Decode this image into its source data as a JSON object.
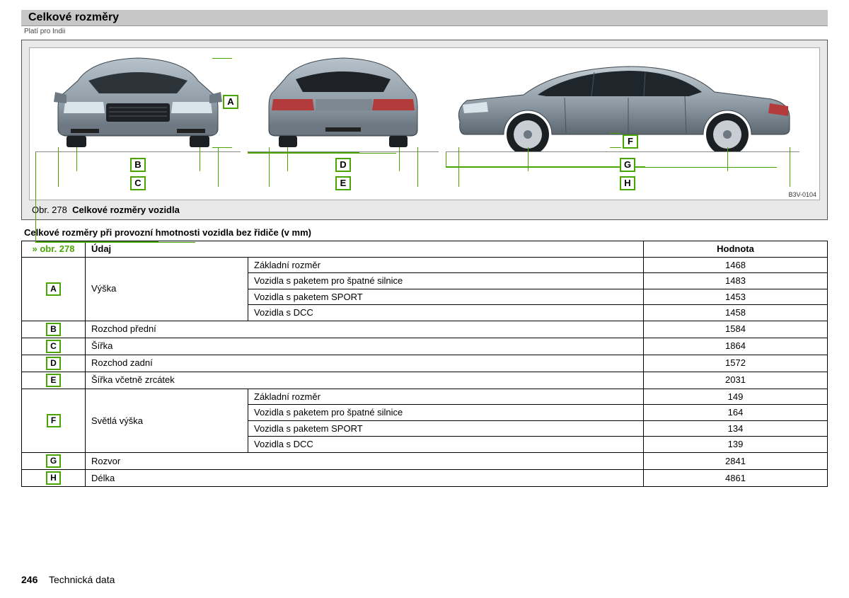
{
  "title": "Celkové rozměry",
  "subtitle": "Platí pro Indii",
  "figure": {
    "caption_prefix": "Obr. 278",
    "caption": "Celkové rozměry vozidla",
    "code": "B3V-0104",
    "labels": {
      "A": "A",
      "B": "B",
      "C": "C",
      "D": "D",
      "E": "E",
      "F": "F",
      "G": "G",
      "H": "H"
    },
    "car_color": "#8e9ba5",
    "car_color_dark": "#5c6770",
    "dim_color": "#49a600"
  },
  "table_title": "Celkové rozměry při provozní hmotnosti vozidla bez řidiče (v mm)",
  "table": {
    "header": {
      "ref": "» obr. 278",
      "name": "Údaj",
      "value": "Hodnota"
    },
    "rows": [
      {
        "key": "A",
        "name": "Výška",
        "subrows": [
          {
            "label": "Základní rozměr",
            "value": "1468"
          },
          {
            "label": "Vozidla s paketem pro špatné silnice",
            "value": "1483"
          },
          {
            "label": "Vozidla s paketem SPORT",
            "value": "1453"
          },
          {
            "label": "Vozidla s DCC",
            "value": "1458"
          }
        ]
      },
      {
        "key": "B",
        "name": "Rozchod přední",
        "value": "1584"
      },
      {
        "key": "C",
        "name": "Šířka",
        "value": "1864"
      },
      {
        "key": "D",
        "name": "Rozchod zadní",
        "value": "1572"
      },
      {
        "key": "E",
        "name": "Šířka včetně zrcátek",
        "value": "2031"
      },
      {
        "key": "F",
        "name": "Světlá výška",
        "subrows": [
          {
            "label": "Základní rozměr",
            "value": "149"
          },
          {
            "label": "Vozidla s paketem pro špatné silnice",
            "value": "164"
          },
          {
            "label": "Vozidla s paketem SPORT",
            "value": "134"
          },
          {
            "label": "Vozidla s DCC",
            "value": "139"
          }
        ]
      },
      {
        "key": "G",
        "name": "Rozvor",
        "value": "2841"
      },
      {
        "key": "H",
        "name": "Délka",
        "value": "4861"
      }
    ]
  },
  "footer": {
    "page": "246",
    "section": "Technická data"
  }
}
